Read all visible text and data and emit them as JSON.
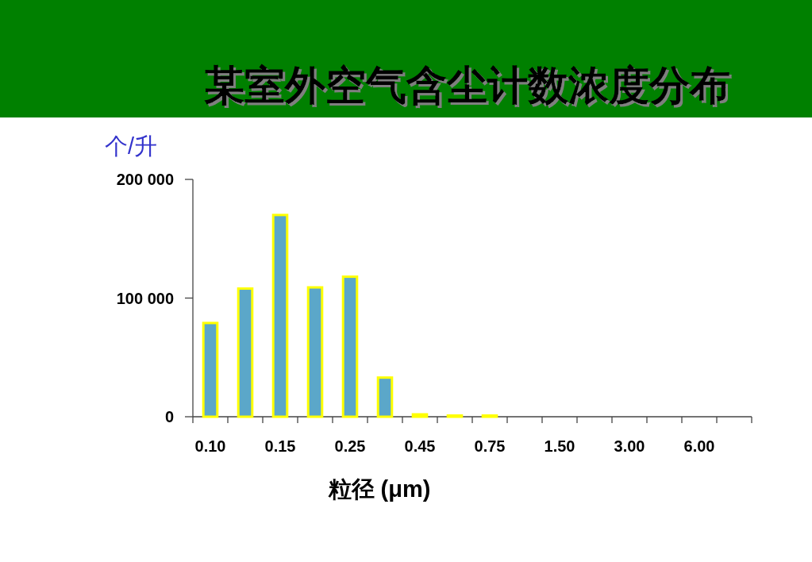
{
  "chart_data": {
    "type": "bar",
    "title": "某室外空气含尘计数浓度分布",
    "xlabel": "粒径 (μm)",
    "ylabel": "个/升",
    "categories": [
      "0.10",
      null,
      "0.15",
      null,
      "0.25",
      null,
      "0.45",
      null,
      "0.75",
      null,
      "1.50",
      null,
      "3.00",
      null,
      "6.00",
      null
    ],
    "values": [
      79000,
      108000,
      170000,
      109000,
      118000,
      33000,
      2000,
      1000,
      1000,
      null,
      null,
      null,
      null,
      null,
      null,
      null
    ],
    "color": "#5ba7c9",
    "ylim": [
      0,
      200000
    ],
    "yticks": [
      0,
      {
        "value": 100000,
        "label": "100 000"
      },
      {
        "value": 200000,
        "label": "200 000"
      }
    ]
  }
}
